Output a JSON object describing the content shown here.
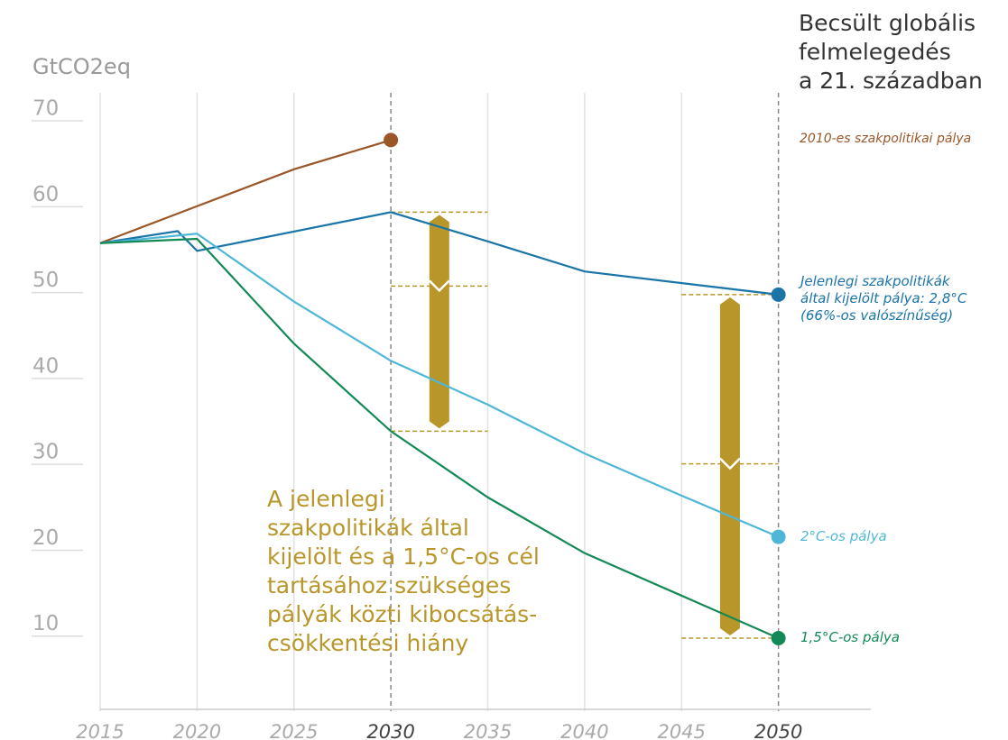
{
  "chart_data": {
    "type": "line",
    "title": "Becsült globális\nfelmelegedés\na 21. században",
    "y_label": "GtCO2eq",
    "annotation": "A jelenlegi\n szakpolitikák által\nkijelölt és a 1,5°C-os cél\ntartásához szükséges\npályák közti kibocsátás-\ncsökkentési hiány",
    "xlim": [
      2015,
      2055
    ],
    "ylim": [
      0,
      72
    ],
    "xticks": [
      2015,
      2020,
      2025,
      2030,
      2035,
      2040,
      2045,
      2050
    ],
    "highlight_x": [
      2030,
      2050
    ],
    "yticks": [
      10,
      20,
      30,
      40,
      50,
      60,
      70
    ],
    "grid": true,
    "series": [
      {
        "name": "2010-es szakpolitikai pálya",
        "color": "#9b5628",
        "x": [
          2015,
          2020,
          2025,
          2030
        ],
        "values": [
          54.5,
          58.8,
          63.1,
          66.5
        ]
      },
      {
        "name": "Jelenlegi szakpolitikák\náltal kijelölt pálya: 2,8°C\n(66%-os valószínűség)",
        "color": "#1a74a8",
        "x": [
          2015,
          2019,
          2020,
          2030,
          2035,
          2040,
          2050
        ],
        "values": [
          54.5,
          55.9,
          53.6,
          58.1,
          54.7,
          51.2,
          48.5
        ]
      },
      {
        "name": "2°C-os pálya",
        "color": "#4eb7d8",
        "x": [
          2015,
          2020,
          2025,
          2030,
          2035,
          2040,
          2045,
          2050
        ],
        "values": [
          54.5,
          55.6,
          47.7,
          40.8,
          35.7,
          30.0,
          25.1,
          20.3
        ]
      },
      {
        "name": "1,5°C-os pálya",
        "color": "#138a56",
        "x": [
          2015,
          2020,
          2025,
          2030,
          2035,
          2040,
          2050
        ],
        "values": [
          54.5,
          55.0,
          42.8,
          32.6,
          24.9,
          18.4,
          8.5
        ]
      }
    ],
    "gap_color": "#b8962a",
    "gaps": [
      {
        "x": 2032.5,
        "top": 58.1,
        "mid": 49.5,
        "bottom": 32.6
      },
      {
        "x": 2047.5,
        "top": 48.5,
        "mid": 28.8,
        "bottom": 8.5
      }
    ]
  }
}
